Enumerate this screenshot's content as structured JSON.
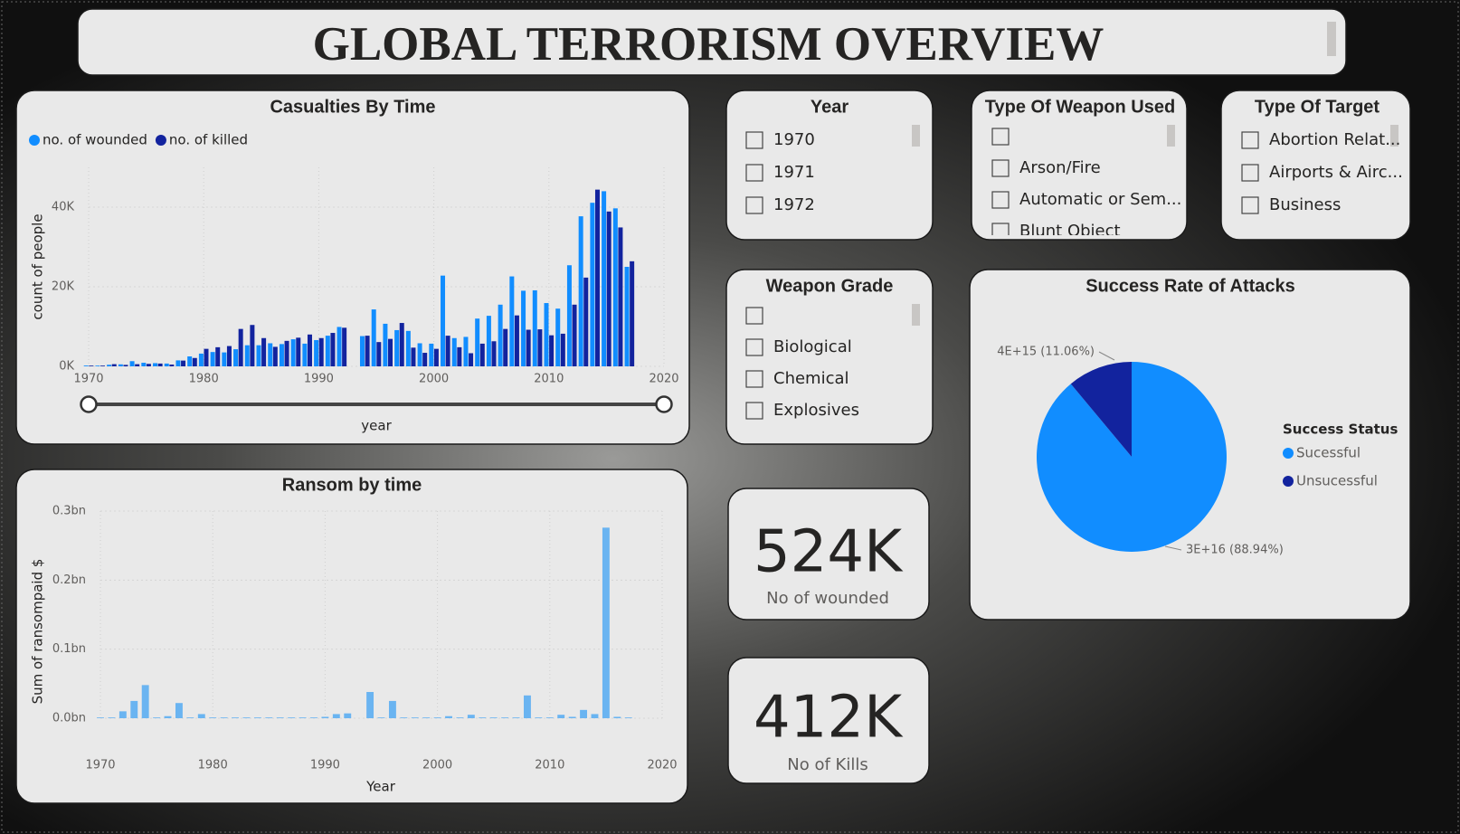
{
  "header": {
    "title": "GLOBAL TERRORISM OVERVIEW"
  },
  "slicers": [
    {
      "title": "Year",
      "items": [
        "1970",
        "1971",
        "1972"
      ]
    },
    {
      "title": "Type Of Weapon Used",
      "items": [
        "Arson/Fire",
        "Automatic or Sem...",
        "Blunt Object"
      ]
    },
    {
      "title": "Type Of Target",
      "items": [
        "Abortion Relat...",
        "Airports & Airc...",
        "Business"
      ]
    },
    {
      "title": "Weapon Grade",
      "items": [
        "Biological",
        "Chemical",
        "Explosives"
      ]
    }
  ],
  "kpis": [
    {
      "value": "524K",
      "label": "No of wounded"
    },
    {
      "value": "412K",
      "label": "No of Kills"
    }
  ],
  "chart_data": [
    {
      "type": "bar",
      "title": "Casualties By Time",
      "x_label": "year",
      "y_label": "count of people",
      "x": [
        1970,
        1971,
        1972,
        1973,
        1974,
        1975,
        1976,
        1977,
        1978,
        1979,
        1980,
        1981,
        1982,
        1983,
        1984,
        1985,
        1986,
        1987,
        1988,
        1989,
        1990,
        1991,
        1992,
        1994,
        1995,
        1996,
        1997,
        1998,
        1999,
        2000,
        2001,
        2002,
        2003,
        2004,
        2005,
        2006,
        2007,
        2008,
        2009,
        2010,
        2011,
        2012,
        2013,
        2014,
        2015,
        2016,
        2017
      ],
      "series": [
        {
          "name": "no. of wounded",
          "color": "#118DFF",
          "values": [
            200,
            100,
            400,
            500,
            1300,
            900,
            800,
            700,
            1500,
            2500,
            3200,
            3600,
            3500,
            4300,
            5300,
            5300,
            5800,
            5600,
            6800,
            5700,
            6600,
            7700,
            9900,
            7600,
            14300,
            10700,
            9100,
            8900,
            5800,
            5700,
            22800,
            7100,
            7400,
            12000,
            12700,
            15500,
            22600,
            19000,
            19100,
            15900,
            14500,
            25400,
            37700,
            41100,
            44000,
            39700,
            25000
          ]
        },
        {
          "name": "no. of killed",
          "color": "#12239E",
          "values": [
            170,
            170,
            550,
            370,
            540,
            620,
            700,
            450,
            1450,
            2100,
            4400,
            4800,
            5100,
            9400,
            10400,
            7100,
            4900,
            6400,
            7200,
            8000,
            7100,
            8400,
            9700,
            7700,
            6100,
            6900,
            10900,
            4700,
            3400,
            4400,
            7700,
            4800,
            3300,
            5700,
            6300,
            9400,
            12800,
            9200,
            9300,
            7800,
            8200,
            15500,
            22300,
            44400,
            38900,
            34900,
            26400
          ]
        }
      ],
      "xlim": [
        1970,
        2020
      ],
      "xticks": [
        1970,
        1980,
        1990,
        2000,
        2010,
        2020
      ],
      "ylim": [
        0,
        50000
      ],
      "yticks": [
        {
          "value": 0,
          "label": "0K"
        },
        {
          "value": 20000,
          "label": "20K"
        },
        {
          "value": 40000,
          "label": "40K"
        }
      ],
      "grid": true
    },
    {
      "type": "bar",
      "title": "Ransom by time",
      "x_label": "Year",
      "y_label": "Sum of ransompaid $",
      "x": [
        1970,
        1971,
        1972,
        1973,
        1974,
        1975,
        1976,
        1977,
        1978,
        1979,
        1980,
        1981,
        1982,
        1983,
        1984,
        1985,
        1986,
        1987,
        1988,
        1989,
        1990,
        1991,
        1992,
        1994,
        1995,
        1996,
        1997,
        1998,
        1999,
        2000,
        2001,
        2002,
        2003,
        2004,
        2005,
        2006,
        2007,
        2008,
        2009,
        2010,
        2011,
        2012,
        2013,
        2014,
        2015,
        2016,
        2017
      ],
      "values": [
        0,
        500000,
        10000000,
        25000000,
        48000000,
        1000000,
        3000000,
        22000000,
        1000000,
        6000000,
        1000000,
        0,
        1000000,
        1000000,
        0,
        1000000,
        0,
        1000000,
        1000000,
        1000000,
        2000000,
        6000000,
        7000000,
        38000000,
        1000000,
        25000000,
        1000000,
        1000000,
        1000000,
        1000000,
        3000000,
        1000000,
        5000000,
        1000000,
        1000000,
        1000000,
        1000000,
        33000000,
        1000000,
        500000,
        5000000,
        2000000,
        12000000,
        6000000,
        276000000,
        2000000,
        1000000
      ],
      "color": "#6AB4F1",
      "xlim": [
        1970,
        2020
      ],
      "xticks": [
        1970,
        1980,
        1990,
        2000,
        2010,
        2020
      ],
      "ylim": [
        0,
        300000000
      ],
      "yticks": [
        {
          "value": 0,
          "label": "0.0bn"
        },
        {
          "value": 100000000,
          "label": "0.1bn"
        },
        {
          "value": 200000000,
          "label": "0.2bn"
        },
        {
          "value": 300000000,
          "label": "0.3bn"
        }
      ],
      "grid": true
    },
    {
      "type": "pie",
      "title": "Success Rate of Attacks",
      "legend_title": "Success Status",
      "categories": [
        "Sucessful",
        "Unsucessful"
      ],
      "values": [
        88.94,
        11.06
      ],
      "value_labels": [
        "3E+16 (88.94%)",
        "4E+15 (11.06%)"
      ],
      "colors": [
        "#118DFF",
        "#12239E"
      ],
      "legend": "right"
    }
  ]
}
